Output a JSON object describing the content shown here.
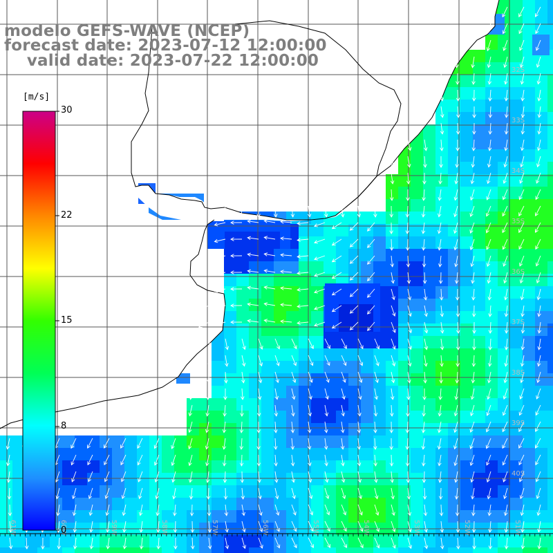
{
  "title": {
    "line1": "modelo GEFS-WAVE (NCEP)",
    "line2": "forecast date: 2023-07-12 12:00:00",
    "line3": "    valid date: 2023-07-22 12:00:00"
  },
  "colorbar": {
    "unit": "[m/s]",
    "min": 0,
    "max": 30,
    "ticks": [
      "30",
      "22",
      "15",
      "8",
      "0"
    ],
    "colors": [
      "#0000ff",
      "#1e90ff",
      "#00ffff",
      "#00ff55",
      "#33ff00",
      "#ffff00",
      "#ff8800",
      "#ff0000",
      "#cc0088"
    ]
  },
  "map": {
    "lat_labels": [
      "32S",
      "33S",
      "34S",
      "35S",
      "36S",
      "37S",
      "38S",
      "39S",
      "40S"
    ],
    "lon_labels": [
      "61W",
      "60W",
      "59W",
      "58W",
      "57W",
      "56W",
      "55W",
      "54W",
      "53W",
      "52W",
      "51W"
    ],
    "vector_direction": "from north/northeast, pointing south/southwest",
    "land_color": "#ffffff"
  }
}
